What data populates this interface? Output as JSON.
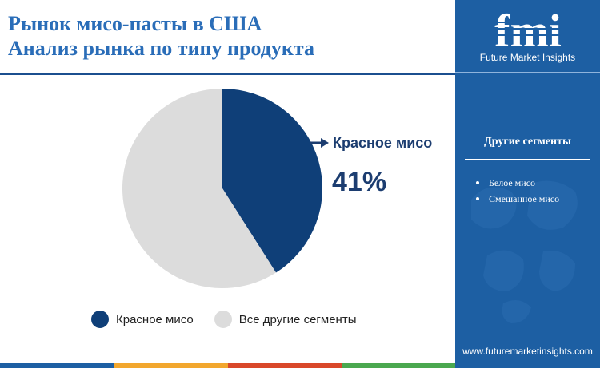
{
  "header": {
    "title_line1": "Рынок мисо-пасты в США",
    "title_line2": "Анализ рынка по типу продукта"
  },
  "chart_data": {
    "type": "pie",
    "slices": [
      {
        "label": "Красное мисо",
        "value": 41,
        "color": "#0f3f78"
      },
      {
        "label": "Все другие сегменты",
        "value": 59,
        "color": "#dcdcdc"
      }
    ],
    "callout": {
      "label": "Красное мисо",
      "value_text": "41%"
    },
    "legend": [
      "Красное мисо",
      "Все другие сегменты"
    ],
    "legend_position": "bottom"
  },
  "sidebar": {
    "logo_text": "fmi",
    "logo_caption": "Future Market Insights",
    "segments_title": "Другие сегменты",
    "segments": [
      "Белое мисо",
      "Смешанное мисо"
    ],
    "website": "www.futuremarketinsights.com"
  },
  "colors": {
    "accent_blue": "#1d5fa3",
    "dark_navy": "#0f3f78",
    "title_blue": "#2a6db8",
    "bottom_bar": [
      "#1d5fa3",
      "#f2a72e",
      "#d9482a",
      "#4aa84f"
    ]
  }
}
